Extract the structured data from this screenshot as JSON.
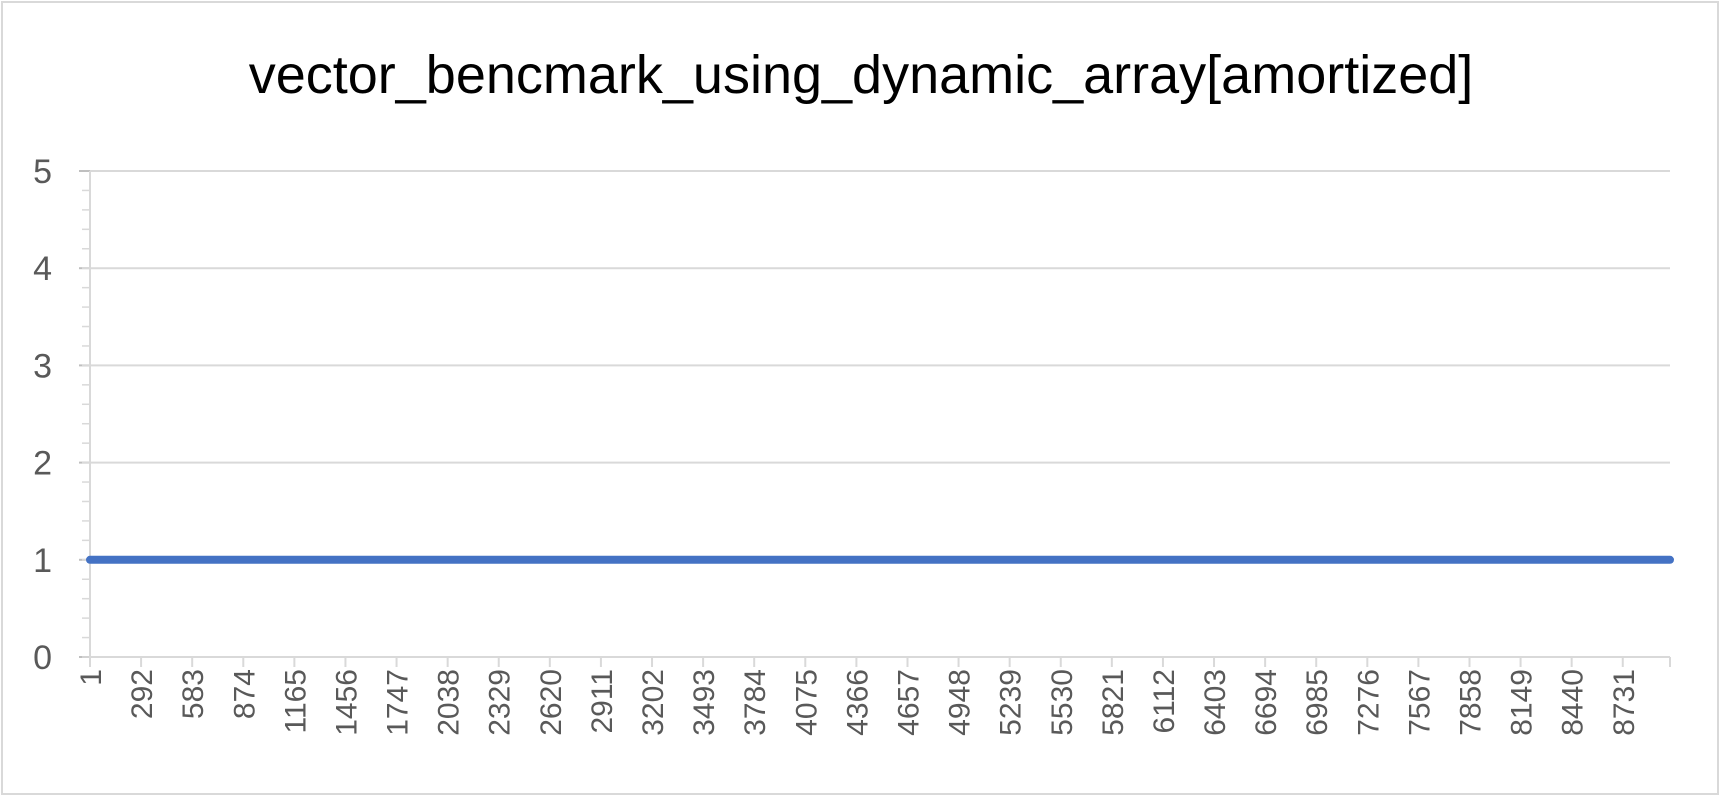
{
  "chart_data": {
    "type": "line",
    "title": "vector_bencmark_using_dynamic_array[amortized]",
    "xlabel": "",
    "ylabel": "",
    "categories": [
      "1",
      "292",
      "583",
      "874",
      "1165",
      "1456",
      "1747",
      "2038",
      "2329",
      "2620",
      "2911",
      "3202",
      "3493",
      "3784",
      "4075",
      "4366",
      "4657",
      "4948",
      "5239",
      "5530",
      "5821",
      "6112",
      "6403",
      "6694",
      "6985",
      "7276",
      "7567",
      "7858",
      "8149",
      "8440",
      "8731"
    ],
    "x_range": [
      1,
      9000
    ],
    "ylim": [
      0,
      5
    ],
    "yticks": [
      0,
      1,
      2,
      3,
      4,
      5
    ],
    "grid": true,
    "legend": "none",
    "series": [
      {
        "x": [
          1,
          9000
        ],
        "values": [
          1,
          1
        ],
        "color": "#4472c4"
      }
    ]
  }
}
